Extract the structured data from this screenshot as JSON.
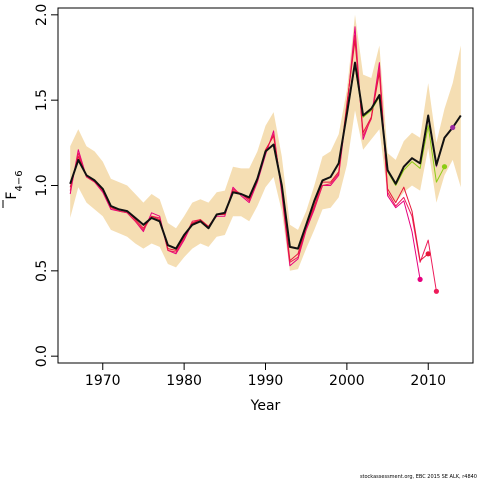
{
  "chart_data": {
    "type": "line",
    "xlabel": "Year",
    "ylabel": "F",
    "ylabel_subscript": "4−6",
    "xlim": [
      1964.5,
      2015.5
    ],
    "ylim": [
      -0.04,
      2.04
    ],
    "x_ticks": [
      1970,
      1980,
      1990,
      2000,
      2010
    ],
    "y_ticks": [
      0.0,
      0.5,
      1.0,
      1.5,
      2.0
    ],
    "x_tick_labels": [
      "1970",
      "1980",
      "1990",
      "2000",
      "2010"
    ],
    "y_tick_labels": [
      "0.0",
      "0.5",
      "1.0",
      "1.5",
      "2.0"
    ],
    "band": {
      "x": [
        1966,
        1967,
        1968,
        1969,
        1970,
        1971,
        1972,
        1973,
        1974,
        1975,
        1976,
        1977,
        1978,
        1979,
        1980,
        1981,
        1982,
        1983,
        1984,
        1985,
        1986,
        1987,
        1988,
        1989,
        1990,
        1991,
        1992,
        1993,
        1994,
        1995,
        1996,
        1997,
        1998,
        1999,
        2000,
        2001,
        2002,
        2003,
        2004,
        2005,
        2006,
        2007,
        2008,
        2009,
        2010,
        2011,
        2012,
        2013,
        2014
      ],
      "upper": [
        1.23,
        1.33,
        1.23,
        1.2,
        1.14,
        1.04,
        1.02,
        1.0,
        0.95,
        0.9,
        0.95,
        0.92,
        0.78,
        0.75,
        0.82,
        0.9,
        0.92,
        0.9,
        0.96,
        0.97,
        1.11,
        1.1,
        1.1,
        1.2,
        1.35,
        1.43,
        1.17,
        0.77,
        0.74,
        0.85,
        1.0,
        1.17,
        1.2,
        1.3,
        1.56,
        2.0,
        1.65,
        1.63,
        1.82,
        1.19,
        1.15,
        1.26,
        1.31,
        1.28,
        1.6,
        1.25,
        1.45,
        1.6,
        1.82
      ],
      "lower": [
        0.81,
        0.99,
        0.9,
        0.86,
        0.82,
        0.74,
        0.72,
        0.7,
        0.66,
        0.63,
        0.66,
        0.64,
        0.54,
        0.52,
        0.58,
        0.63,
        0.66,
        0.64,
        0.7,
        0.71,
        0.82,
        0.82,
        0.79,
        0.88,
        0.99,
        1.05,
        0.85,
        0.5,
        0.51,
        0.63,
        0.74,
        0.86,
        0.87,
        0.93,
        1.12,
        1.44,
        1.21,
        1.27,
        1.33,
        0.94,
        0.9,
        0.96,
        1.0,
        0.97,
        1.22,
        0.9,
        1.06,
        1.15,
        0.99
      ]
    },
    "series": [
      {
        "x": [
          1966,
          1967,
          1968,
          1969,
          1970,
          1971,
          1972,
          1973,
          1974,
          1975,
          1976,
          1977,
          1978,
          1979,
          1980,
          1981,
          1982,
          1983,
          1984,
          1985,
          1986,
          1987,
          1988,
          1989,
          1990,
          1991,
          1992,
          1993,
          1994,
          1995,
          1996,
          1997,
          1998,
          1999,
          2000,
          2001,
          2002,
          2003,
          2004,
          2005,
          2006,
          2007,
          2008,
          2009
        ],
        "values": [
          0.95,
          1.21,
          1.05,
          1.02,
          0.96,
          0.86,
          0.85,
          0.84,
          0.79,
          0.73,
          0.84,
          0.82,
          0.62,
          0.6,
          0.68,
          0.78,
          0.79,
          0.76,
          0.82,
          0.82,
          0.99,
          0.94,
          0.9,
          1.02,
          1.18,
          1.32,
          0.95,
          0.53,
          0.57,
          0.74,
          0.86,
          1.0,
          1.0,
          1.06,
          1.45,
          1.93,
          1.27,
          1.4,
          1.72,
          0.94,
          0.87,
          0.91,
          0.73,
          0.45
        ],
        "end_marker": true,
        "color": "#e6007e"
      },
      {
        "x": [
          1966,
          1967,
          1968,
          1969,
          1970,
          1971,
          1972,
          1973,
          1974,
          1975,
          1976,
          1977,
          1978,
          1979,
          1980,
          1981,
          1982,
          1983,
          1984,
          1985,
          1986,
          1987,
          1988,
          1989,
          1990,
          1991,
          1992,
          1993,
          1994,
          1995,
          1996,
          1997,
          1998,
          1999,
          2000,
          2001,
          2002,
          2003,
          2004,
          2005,
          2006,
          2007,
          2008,
          2009,
          2010,
          2011
        ],
        "values": [
          0.97,
          1.19,
          1.05,
          1.02,
          0.97,
          0.87,
          0.85,
          0.84,
          0.79,
          0.74,
          0.82,
          0.81,
          0.62,
          0.61,
          0.69,
          0.79,
          0.8,
          0.76,
          0.83,
          0.83,
          0.98,
          0.95,
          0.91,
          1.03,
          1.2,
          1.3,
          0.97,
          0.55,
          0.58,
          0.75,
          0.87,
          1.0,
          1.01,
          1.07,
          1.47,
          1.88,
          1.29,
          1.39,
          1.69,
          0.96,
          0.88,
          0.93,
          0.82,
          0.55,
          0.68,
          0.38
        ],
        "end_marker": true,
        "color": "#ee1c5a"
      },
      {
        "x": [
          1966,
          1967,
          1968,
          1969,
          1970,
          1971,
          1972,
          1973,
          1974,
          1975,
          1976,
          1977,
          1978,
          1979,
          1980,
          1981,
          1982,
          1983,
          1984,
          1985,
          1986,
          1987,
          1988,
          1989,
          1990,
          1991,
          1992,
          1993,
          1994,
          1995,
          1996,
          1997,
          1998,
          1999,
          2000,
          2001,
          2002,
          2003,
          2004,
          2005,
          2006,
          2007,
          2008,
          2009,
          2010
        ],
        "values": [
          0.99,
          1.17,
          1.06,
          1.03,
          0.97,
          0.87,
          0.86,
          0.85,
          0.8,
          0.75,
          0.82,
          0.8,
          0.63,
          0.62,
          0.7,
          0.78,
          0.8,
          0.76,
          0.83,
          0.83,
          0.97,
          0.95,
          0.92,
          1.03,
          1.21,
          1.29,
          0.98,
          0.56,
          0.6,
          0.76,
          0.88,
          1.02,
          1.02,
          1.08,
          1.48,
          1.85,
          1.31,
          1.4,
          1.66,
          0.98,
          0.9,
          0.99,
          0.85,
          0.56,
          0.6
        ],
        "end_marker": true,
        "color": "#e6173a"
      },
      {
        "x": [
          1966,
          1967,
          1968,
          1969,
          1970,
          1971,
          1972,
          1973,
          1974,
          1975,
          1976,
          1977,
          1978,
          1979,
          1980,
          1981,
          1982,
          1983,
          1984,
          1985,
          1986,
          1987,
          1988,
          1989,
          1990,
          1991,
          1992,
          1993,
          1994,
          1995,
          1996,
          1997,
          1998,
          1999,
          2000,
          2001,
          2002,
          2003,
          2004,
          2005,
          2006,
          2007,
          2008,
          2009,
          2010,
          2011,
          2012
        ],
        "values": [
          1.01,
          1.15,
          1.06,
          1.03,
          0.98,
          0.88,
          0.86,
          0.85,
          0.81,
          0.77,
          0.81,
          0.79,
          0.65,
          0.63,
          0.71,
          0.77,
          0.79,
          0.75,
          0.83,
          0.84,
          0.96,
          0.95,
          0.93,
          1.04,
          1.2,
          1.24,
          1.0,
          0.64,
          0.63,
          0.77,
          0.91,
          1.03,
          1.05,
          1.13,
          1.42,
          1.7,
          1.4,
          1.44,
          1.52,
          1.08,
          1.0,
          1.09,
          1.14,
          1.1,
          1.35,
          1.02,
          1.11
        ],
        "end_marker": true,
        "color": "#8ccc14"
      },
      {
        "x": [
          1966,
          1967,
          1968,
          1969,
          1970,
          1971,
          1972,
          1973,
          1974,
          1975,
          1976,
          1977,
          1978,
          1979,
          1980,
          1981,
          1982,
          1983,
          1984,
          1985,
          1986,
          1987,
          1988,
          1989,
          1990,
          1991,
          1992,
          1993,
          1994,
          1995,
          1996,
          1997,
          1998,
          1999,
          2000,
          2001,
          2002,
          2003,
          2004,
          2005,
          2006,
          2007,
          2008,
          2009,
          2010,
          2011,
          2012,
          2013
        ],
        "values": [
          1.01,
          1.15,
          1.06,
          1.03,
          0.98,
          0.88,
          0.86,
          0.85,
          0.81,
          0.77,
          0.81,
          0.79,
          0.65,
          0.63,
          0.71,
          0.77,
          0.79,
          0.75,
          0.83,
          0.84,
          0.96,
          0.95,
          0.93,
          1.04,
          1.2,
          1.24,
          1.0,
          0.64,
          0.63,
          0.77,
          0.91,
          1.03,
          1.05,
          1.13,
          1.42,
          1.72,
          1.41,
          1.45,
          1.53,
          1.09,
          1.01,
          1.11,
          1.16,
          1.13,
          1.4,
          1.11,
          1.28,
          1.34
        ],
        "end_marker": true,
        "color": "#9b2aa0"
      },
      {
        "x": [
          1966,
          1967,
          1968,
          1969,
          1970,
          1971,
          1972,
          1973,
          1974,
          1975,
          1976,
          1977,
          1978,
          1979,
          1980,
          1981,
          1982,
          1983,
          1984,
          1985,
          1986,
          1987,
          1988,
          1989,
          1990,
          1991,
          1992,
          1993,
          1994,
          1995,
          1996,
          1997,
          1998,
          1999,
          2000,
          2001,
          2002,
          2003,
          2004,
          2005,
          2006,
          2007,
          2008,
          2009,
          2010,
          2011,
          2012,
          2013,
          2014
        ],
        "values": [
          1.01,
          1.15,
          1.06,
          1.03,
          0.98,
          0.88,
          0.86,
          0.85,
          0.81,
          0.77,
          0.81,
          0.79,
          0.65,
          0.63,
          0.71,
          0.77,
          0.79,
          0.75,
          0.83,
          0.84,
          0.96,
          0.95,
          0.93,
          1.04,
          1.2,
          1.24,
          1.0,
          0.64,
          0.63,
          0.77,
          0.91,
          1.03,
          1.05,
          1.13,
          1.42,
          1.72,
          1.41,
          1.45,
          1.53,
          1.09,
          1.01,
          1.11,
          1.16,
          1.13,
          1.41,
          1.12,
          1.28,
          1.34,
          1.41
        ],
        "end_marker": false,
        "color": "#111111",
        "width": 2
      }
    ],
    "band_color": "#f5deb3",
    "grid": false,
    "legend": false
  },
  "footer": "stockassessment.org, EBC 2015 SE ALK, r4840"
}
